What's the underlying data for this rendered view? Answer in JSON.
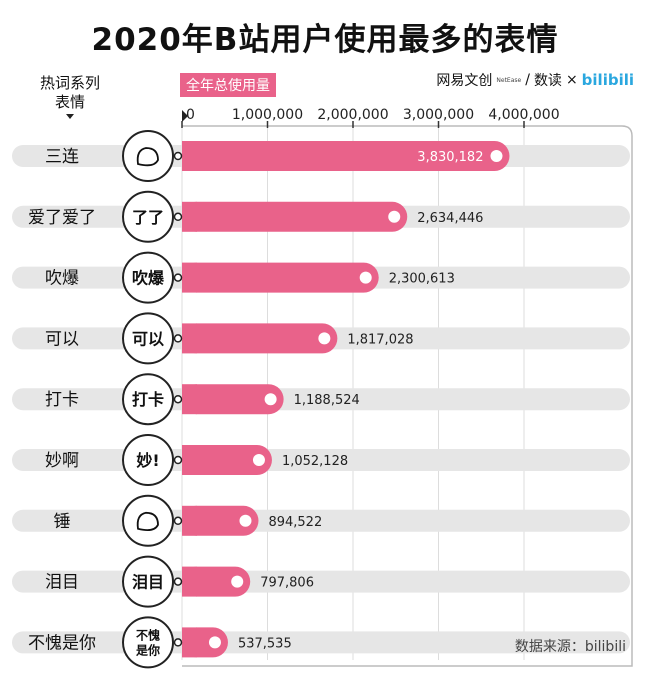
{
  "title": "2020年B站用户使用最多的表情",
  "column_header": {
    "line1": "热词系列",
    "line2": "表情"
  },
  "metric_label": "全年总使用量",
  "logos": {
    "netease": "网易文创",
    "netease_small": "NetEase",
    "separator": "/",
    "dushu": "数读",
    "times": "×",
    "bilibili": "bilibili"
  },
  "source": "数据来源：bilibili",
  "colors": {
    "bar": "#e9628a",
    "track": "#e6e6e6",
    "title": "#111111",
    "logo": "#2aa7df"
  },
  "chart_data": {
    "type": "bar",
    "orientation": "horizontal",
    "title": "2020年B站用户使用最多的表情",
    "categories": [
      "三连",
      "爱了爱了",
      "吹爆",
      "可以",
      "打卡",
      "妙啊",
      "锤",
      "泪目",
      "不愧是你"
    ],
    "values": [
      3830182,
      2634446,
      2300613,
      1817028,
      1188524,
      1052128,
      894522,
      797806,
      537535
    ],
    "value_labels": [
      "3,830,182",
      "2,634,446",
      "2,300,613",
      "1,817,028",
      "1,188,524",
      "1,052,128",
      "894,522",
      "797,806",
      "537,535"
    ],
    "emoji_text": [
      "",
      "了了",
      "吹爆",
      "可以",
      "打卡",
      "妙!",
      "",
      "泪目",
      "不愧是你"
    ],
    "xticks": [
      0,
      1000000,
      2000000,
      3000000,
      4000000
    ],
    "xtick_labels": [
      "0",
      "1,000,000",
      "2,000,000",
      "3,000,000",
      "4,000,000"
    ],
    "xlim": [
      0,
      4000000
    ],
    "grid": true
  }
}
